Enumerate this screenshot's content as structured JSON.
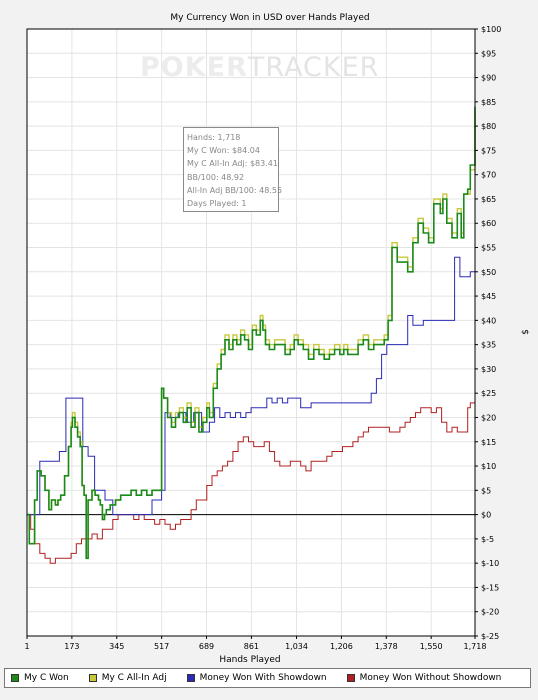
{
  "watermark": {
    "part1": "POKER",
    "part2": "TRACKER"
  },
  "hud": {
    "lines": [
      "Hands: 1,718",
      "My C Won: $84.04",
      "My C All-In Adj: $83.41",
      "BB/100: 48.92",
      "All-In Adj BB/100: 48.55",
      "Days Played: 1"
    ]
  },
  "legend": [
    {
      "label": "My C Won",
      "color": "#1b8a1b"
    },
    {
      "label": "My C All-In Adj",
      "color": "#c8c83c"
    },
    {
      "label": "Money Won With Showdown",
      "color": "#2a2ab4"
    },
    {
      "label": "Money Won Without Showdown",
      "color": "#b02020"
    }
  ],
  "chart_data": {
    "type": "line",
    "title": "My Currency Won in USD over Hands Played",
    "xlabel": "Hands Played",
    "ylabel": "$",
    "xlim": [
      1,
      1718
    ],
    "ylim": [
      -25,
      100
    ],
    "x_ticks": [
      1,
      173,
      345,
      517,
      689,
      861,
      1034,
      1206,
      1378,
      1550,
      1718
    ],
    "x_tick_labels": [
      "1",
      "173",
      "345",
      "517",
      "689",
      "861",
      "1,034",
      "1,206",
      "1,378",
      "1,550",
      "1,718"
    ],
    "y_ticks": [
      -25,
      -20,
      -15,
      -10,
      -5,
      0,
      5,
      10,
      15,
      20,
      25,
      30,
      35,
      40,
      45,
      50,
      55,
      60,
      65,
      70,
      75,
      80,
      85,
      90,
      95,
      100
    ],
    "y_tick_labels": [
      "$-25",
      "$-20",
      "$-15",
      "$-10",
      "$-5",
      "$0",
      "$5",
      "$10",
      "$15",
      "$20",
      "$25",
      "$30",
      "$35",
      "$40",
      "$45",
      "$50",
      "$55",
      "$60",
      "$65",
      "$70",
      "$75",
      "$80",
      "$85",
      "$90",
      "$95",
      "$100"
    ],
    "series": [
      {
        "name": "My C Won",
        "color": "#1b8a1b",
        "x": [
          1,
          10,
          22,
          30,
          40,
          55,
          70,
          85,
          95,
          110,
          120,
          130,
          145,
          160,
          170,
          175,
          185,
          195,
          205,
          212,
          220,
          228,
          235,
          250,
          262,
          268,
          275,
          282,
          290,
          298,
          305,
          320,
          340,
          360,
          380,
          400,
          420,
          440,
          460,
          480,
          500,
          512,
          517,
          525,
          540,
          555,
          570,
          585,
          600,
          615,
          630,
          645,
          660,
          675,
          690,
          700,
          715,
          730,
          745,
          760,
          775,
          790,
          805,
          820,
          835,
          850,
          865,
          880,
          895,
          905,
          915,
          930,
          950,
          970,
          990,
          1000,
          1010,
          1025,
          1040,
          1060,
          1080,
          1100,
          1120,
          1140,
          1160,
          1180,
          1200,
          1215,
          1230,
          1250,
          1270,
          1290,
          1310,
          1330,
          1350,
          1370,
          1385,
          1400,
          1420,
          1440,
          1460,
          1480,
          1500,
          1520,
          1540,
          1560,
          1575,
          1585,
          1595,
          1610,
          1630,
          1650,
          1665,
          1675,
          1690,
          1700,
          1710,
          1718
        ],
        "values": [
          0,
          -6,
          -6,
          3,
          9,
          8,
          5,
          1,
          3,
          2,
          3,
          4,
          8,
          14,
          18,
          20,
          18,
          16,
          14,
          6,
          4,
          -9,
          3,
          5,
          4,
          4,
          3,
          2,
          -1,
          0,
          1,
          2,
          3,
          4,
          4,
          5,
          4,
          5,
          4,
          5,
          5,
          5,
          26,
          24,
          20,
          18,
          20,
          21,
          19,
          22,
          18,
          21,
          17,
          19,
          22,
          20,
          26,
          30,
          33,
          36,
          34,
          36,
          35,
          37,
          36,
          34,
          38,
          37,
          40,
          38,
          35,
          34,
          35,
          35,
          33,
          33,
          34,
          36,
          35,
          34,
          32,
          34,
          33,
          32,
          33,
          34,
          33,
          34,
          33,
          33,
          35,
          36,
          34,
          35,
          35,
          36,
          40,
          55,
          52,
          52,
          50,
          56,
          60,
          58,
          56,
          64,
          64,
          62,
          65,
          60,
          57,
          62,
          57,
          66,
          67,
          72,
          72,
          84
        ]
      },
      {
        "name": "My C All-In Adj",
        "color": "#c8c83c",
        "x": [
          1,
          10,
          22,
          30,
          40,
          55,
          70,
          85,
          95,
          110,
          120,
          130,
          145,
          160,
          170,
          175,
          185,
          195,
          205,
          212,
          220,
          228,
          235,
          250,
          262,
          268,
          275,
          282,
          290,
          298,
          305,
          320,
          340,
          360,
          380,
          400,
          420,
          440,
          460,
          480,
          500,
          512,
          517,
          525,
          540,
          555,
          570,
          585,
          600,
          615,
          630,
          645,
          660,
          675,
          690,
          700,
          715,
          730,
          745,
          760,
          775,
          790,
          805,
          820,
          835,
          850,
          865,
          880,
          895,
          905,
          915,
          930,
          950,
          970,
          990,
          1000,
          1010,
          1025,
          1040,
          1060,
          1080,
          1100,
          1120,
          1140,
          1160,
          1180,
          1200,
          1215,
          1230,
          1250,
          1270,
          1290,
          1310,
          1330,
          1350,
          1370,
          1385,
          1400,
          1420,
          1440,
          1460,
          1480,
          1500,
          1520,
          1540,
          1560,
          1575,
          1585,
          1595,
          1610,
          1630,
          1650,
          1665,
          1675,
          1690,
          1700,
          1710,
          1718
        ],
        "values": [
          0,
          -6,
          -6,
          3,
          9,
          8,
          5,
          1,
          3,
          2,
          3,
          4,
          8,
          14,
          19,
          21,
          19,
          17,
          15,
          6,
          4,
          -9,
          3,
          5,
          4,
          4,
          3,
          2,
          -1,
          0,
          1,
          2,
          3,
          4,
          4,
          5,
          4,
          5,
          4,
          5,
          5,
          5,
          26,
          24,
          21,
          19,
          21,
          22,
          20,
          23,
          19,
          22,
          18,
          20,
          23,
          21,
          27,
          31,
          34,
          37,
          35,
          37,
          36,
          38,
          37,
          35,
          39,
          38,
          41,
          39,
          36,
          35,
          36,
          36,
          34,
          34,
          35,
          37,
          36,
          35,
          33,
          35,
          34,
          33,
          34,
          35,
          34,
          35,
          34,
          34,
          36,
          37,
          35,
          36,
          36,
          37,
          41,
          56,
          53,
          53,
          51,
          57,
          61,
          59,
          57,
          65,
          65,
          63,
          66,
          61,
          58,
          63,
          58,
          66,
          66,
          71,
          71,
          83
        ]
      },
      {
        "name": "Money Won With Showdown",
        "color": "#2a2ab4",
        "x": [
          1,
          15,
          30,
          50,
          80,
          110,
          125,
          135,
          150,
          160,
          165,
          190,
          215,
          235,
          260,
          280,
          300,
          330,
          360,
          400,
          440,
          480,
          517,
          530,
          550,
          580,
          610,
          640,
          670,
          700,
          720,
          740,
          760,
          780,
          800,
          820,
          840,
          860,
          880,
          900,
          920,
          940,
          960,
          980,
          1000,
          1020,
          1050,
          1090,
          1130,
          1170,
          1210,
          1250,
          1290,
          1320,
          1340,
          1360,
          1380,
          1400,
          1420,
          1440,
          1460,
          1480,
          1500,
          1520,
          1540,
          1560,
          1580,
          1600,
          1620,
          1640,
          1660,
          1680,
          1700,
          1710,
          1718
        ],
        "values": [
          0,
          0,
          0,
          11,
          11,
          11,
          13,
          13,
          24,
          24,
          24,
          24,
          14,
          12,
          5,
          5,
          3,
          0,
          0,
          0,
          0,
          3,
          5,
          21,
          20,
          21,
          19,
          21,
          17,
          19,
          22,
          20,
          21,
          20,
          21,
          20,
          21,
          22,
          22,
          22,
          24,
          23,
          24,
          23,
          24,
          24,
          22,
          23,
          23,
          23,
          23,
          23,
          23,
          25,
          28,
          33,
          35,
          35,
          35,
          35,
          41,
          39,
          39,
          40,
          40,
          40,
          40,
          40,
          40,
          53,
          49,
          49,
          50,
          50,
          60
        ]
      },
      {
        "name": "Money Won Without Showdown",
        "color": "#b02020",
        "x": [
          1,
          15,
          30,
          50,
          70,
          90,
          110,
          130,
          150,
          170,
          190,
          210,
          230,
          250,
          270,
          290,
          310,
          330,
          350,
          370,
          390,
          410,
          430,
          450,
          470,
          490,
          510,
          530,
          550,
          570,
          590,
          610,
          630,
          650,
          670,
          690,
          710,
          730,
          750,
          770,
          790,
          810,
          830,
          850,
          870,
          890,
          910,
          930,
          950,
          970,
          990,
          1010,
          1030,
          1050,
          1070,
          1090,
          1110,
          1130,
          1150,
          1170,
          1190,
          1210,
          1230,
          1250,
          1270,
          1290,
          1310,
          1330,
          1350,
          1370,
          1390,
          1410,
          1430,
          1450,
          1470,
          1490,
          1510,
          1530,
          1550,
          1570,
          1590,
          1610,
          1630,
          1650,
          1670,
          1690,
          1700,
          1718
        ],
        "values": [
          0,
          -3,
          -6,
          -8,
          -9,
          -10,
          -9,
          -9,
          -9,
          -8,
          -6,
          -5,
          -5,
          -4,
          -5,
          -3,
          -3,
          -1,
          0,
          0,
          0,
          -1,
          0,
          -1,
          -1,
          -2,
          -1,
          -2,
          -3,
          -2,
          -1,
          -1,
          1,
          3,
          3,
          6,
          8,
          9,
          10,
          11,
          13,
          15,
          16,
          15,
          14,
          14,
          15,
          13,
          11,
          10,
          10,
          11,
          11,
          10,
          9,
          11,
          11,
          11,
          12,
          13,
          13,
          14,
          14,
          15,
          16,
          17,
          18,
          18,
          18,
          18,
          17,
          17,
          18,
          19,
          20,
          21,
          22,
          22,
          21,
          22,
          19,
          17,
          18,
          17,
          17,
          22,
          23,
          23
        ]
      }
    ],
    "grid": true,
    "legend_position": "bottom"
  }
}
